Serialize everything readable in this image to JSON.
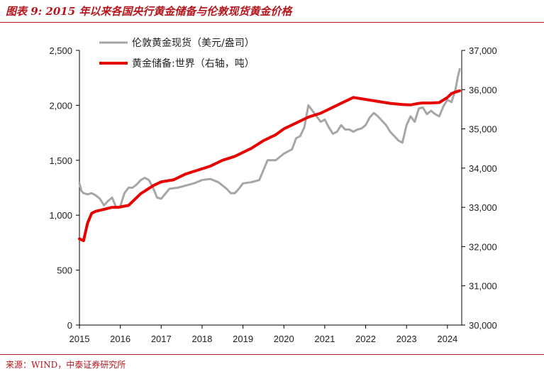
{
  "page": {
    "title": "图表 9:   2015 年以来各国央行黄金储备与伦敦现货黄金价格",
    "source": "来源：WIND，中泰证券研究所"
  },
  "chart_data": {
    "type": "line",
    "title": "",
    "xlabel": "",
    "ylabel": "",
    "xlim": [
      2015,
      2024.35
    ],
    "x_ticks": [
      "2015",
      "2016",
      "2017",
      "2018",
      "2019",
      "2020",
      "2021",
      "2022",
      "2023",
      "2024"
    ],
    "y_left": {
      "range": [
        0,
        2500
      ],
      "ticks": [
        "0",
        "500",
        "1,000",
        "1,500",
        "2,000",
        "2,500"
      ]
    },
    "y_right": {
      "range": [
        30000,
        37000
      ],
      "ticks": [
        "30,000",
        "31,000",
        "32,000",
        "33,000",
        "34,000",
        "35,000",
        "36,000",
        "37,000"
      ]
    },
    "grid": false,
    "legend_position": "top-left",
    "series": [
      {
        "name": "伦敦黄金现货（美元/盎司）",
        "axis": "left",
        "color": "#a6a6a6",
        "x": [
          2015.0,
          2015.05,
          2015.1,
          2015.2,
          2015.3,
          2015.4,
          2015.5,
          2015.6,
          2015.7,
          2015.8,
          2015.9,
          2016.0,
          2016.1,
          2016.2,
          2016.3,
          2016.4,
          2016.5,
          2016.6,
          2016.7,
          2016.8,
          2016.9,
          2017.0,
          2017.2,
          2017.4,
          2017.6,
          2017.8,
          2018.0,
          2018.2,
          2018.4,
          2018.6,
          2018.7,
          2018.8,
          2018.9,
          2019.0,
          2019.2,
          2019.4,
          2019.5,
          2019.6,
          2019.8,
          2020.0,
          2020.2,
          2020.3,
          2020.4,
          2020.5,
          2020.6,
          2020.7,
          2020.8,
          2020.9,
          2021.0,
          2021.1,
          2021.2,
          2021.3,
          2021.4,
          2021.5,
          2021.6,
          2021.7,
          2021.8,
          2021.9,
          2022.0,
          2022.1,
          2022.2,
          2022.3,
          2022.4,
          2022.5,
          2022.6,
          2022.7,
          2022.8,
          2022.9,
          2023.0,
          2023.1,
          2023.2,
          2023.3,
          2023.4,
          2023.5,
          2023.6,
          2023.7,
          2023.8,
          2023.9,
          2024.0,
          2024.1,
          2024.2,
          2024.25,
          2024.3
        ],
        "values": [
          1290,
          1220,
          1200,
          1190,
          1200,
          1180,
          1150,
          1090,
          1130,
          1160,
          1070,
          1080,
          1200,
          1250,
          1250,
          1280,
          1320,
          1340,
          1320,
          1250,
          1160,
          1150,
          1240,
          1250,
          1270,
          1290,
          1320,
          1330,
          1300,
          1240,
          1200,
          1200,
          1240,
          1290,
          1300,
          1320,
          1410,
          1500,
          1500,
          1560,
          1600,
          1700,
          1720,
          1800,
          2000,
          1950,
          1900,
          1850,
          1870,
          1800,
          1740,
          1760,
          1820,
          1780,
          1780,
          1760,
          1780,
          1790,
          1820,
          1890,
          1930,
          1900,
          1860,
          1820,
          1760,
          1720,
          1680,
          1660,
          1820,
          1900,
          1850,
          1970,
          1980,
          1920,
          1950,
          1920,
          1900,
          1990,
          2050,
          2030,
          2150,
          2250,
          2330
        ]
      },
      {
        "name": "黄金储备:世界（右轴，吨）",
        "axis": "right",
        "color": "#e60000",
        "x": [
          2015.0,
          2015.1,
          2015.2,
          2015.3,
          2015.4,
          2015.6,
          2015.8,
          2015.95,
          2016.2,
          2016.5,
          2016.8,
          2017.0,
          2017.3,
          2017.6,
          2017.9,
          2018.2,
          2018.5,
          2018.8,
          2019.0,
          2019.2,
          2019.5,
          2019.8,
          2020.0,
          2020.3,
          2020.6,
          2020.9,
          2021.1,
          2021.4,
          2021.7,
          2022.0,
          2022.3,
          2022.6,
          2022.9,
          2023.1,
          2023.2,
          2023.3,
          2023.4,
          2023.6,
          2023.8,
          2024.0,
          2024.1,
          2024.2,
          2024.3
        ],
        "values": [
          32200,
          32150,
          32600,
          32850,
          32900,
          32950,
          33000,
          33000,
          33050,
          33350,
          33550,
          33650,
          33700,
          33850,
          33950,
          34050,
          34200,
          34300,
          34400,
          34500,
          34700,
          34850,
          35000,
          35150,
          35300,
          35400,
          35500,
          35650,
          35800,
          35750,
          35700,
          35650,
          35620,
          35610,
          35630,
          35650,
          35660,
          35660,
          35670,
          35800,
          35900,
          35940,
          35970
        ]
      }
    ]
  }
}
